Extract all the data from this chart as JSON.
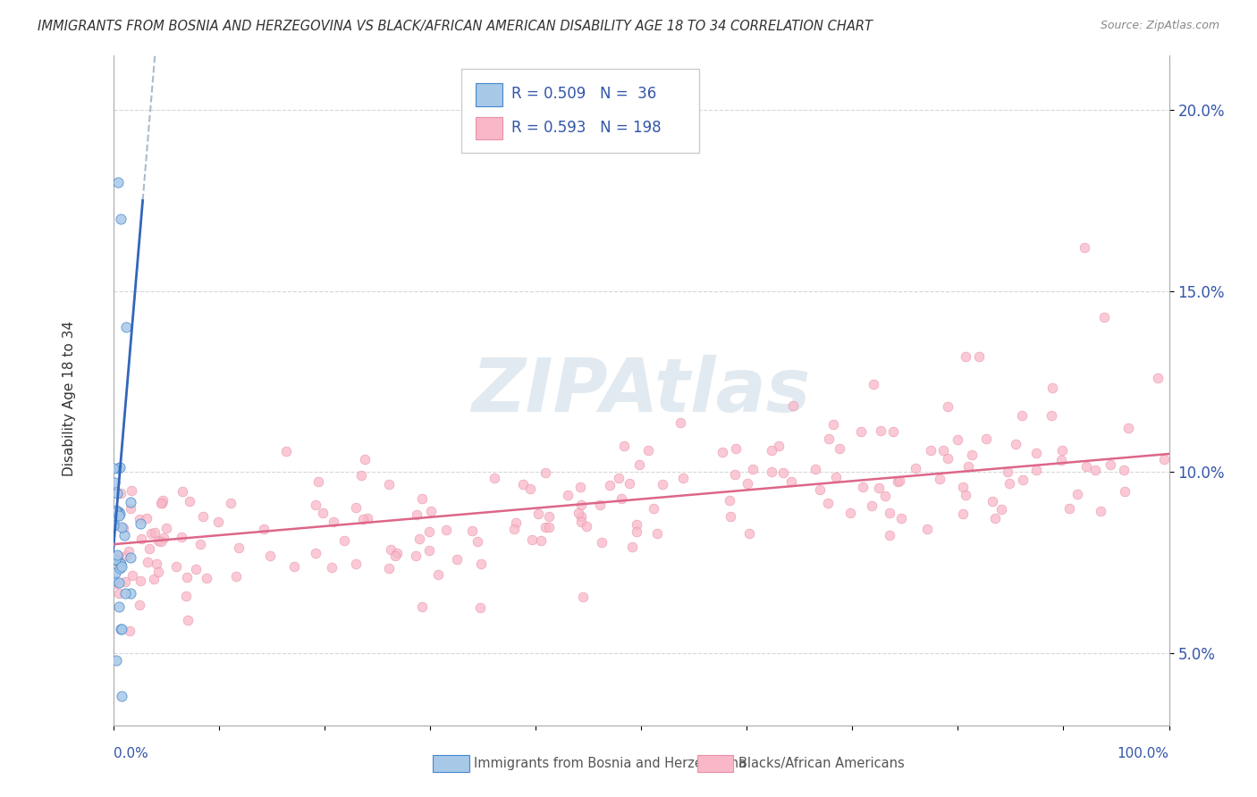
{
  "title": "IMMIGRANTS FROM BOSNIA AND HERZEGOVINA VS BLACK/AFRICAN AMERICAN DISABILITY AGE 18 TO 34 CORRELATION CHART",
  "source": "Source: ZipAtlas.com",
  "ylabel": "Disability Age 18 to 34",
  "ytick_vals": [
    5.0,
    10.0,
    15.0,
    20.0
  ],
  "ytick_labels": [
    "5.0%",
    "10.0%",
    "15.0%",
    "20.0%"
  ],
  "legend_r1": "0.509",
  "legend_n1": "36",
  "legend_r2": "0.593",
  "legend_n2": "198",
  "blue_fill": "#a8c8e8",
  "blue_edge": "#4488cc",
  "blue_line": "#3366bb",
  "pink_fill": "#f9b8c8",
  "pink_edge": "#e890a8",
  "pink_line": "#dd6688",
  "watermark_color": "#d0dce8",
  "xmin": 0.0,
  "xmax": 100.0,
  "ymin": 3.0,
  "ymax": 21.5,
  "blue_trend_x0": 0.0,
  "blue_trend_y0": 7.8,
  "blue_trend_x1": 2.8,
  "blue_trend_y1": 17.5,
  "pink_trend_x0": 0.0,
  "pink_trend_y0": 8.0,
  "pink_trend_x1": 100.0,
  "pink_trend_y1": 10.5
}
